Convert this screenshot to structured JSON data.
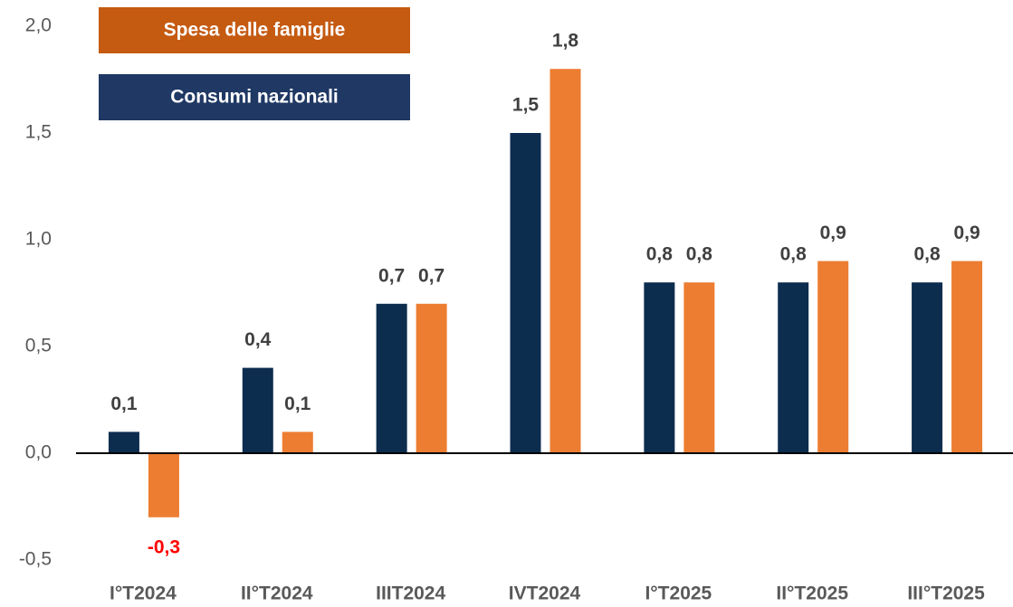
{
  "chart_data": {
    "type": "bar",
    "categories": [
      "I°T2024",
      "II°T2024",
      "IIIT2024",
      "IVT2024",
      "I°T2025",
      "II°T2025",
      "III°T2025"
    ],
    "series": [
      {
        "name": "Consumi nazionali",
        "color": "#0d2d4f",
        "legend_color": "#1f3864",
        "values": [
          0.1,
          0.4,
          0.7,
          1.5,
          0.8,
          0.8,
          0.8
        ],
        "value_labels": [
          "0,1",
          "0,4",
          "0,7",
          "1,5",
          "0,8",
          "0,8",
          "0,8"
        ]
      },
      {
        "name": "Spesa delle famiglie",
        "color": "#ed7d31",
        "legend_color": "#c55a11",
        "values": [
          -0.3,
          0.1,
          0.7,
          1.8,
          0.8,
          0.9,
          0.9
        ],
        "value_labels": [
          "-0,3",
          "0,1",
          "0,7",
          "1,8",
          "0,8",
          "0,9",
          "0,9"
        ]
      }
    ],
    "ylim": [
      -0.5,
      2.0
    ],
    "yticks": [
      {
        "value": -0.5,
        "label": "-0,5"
      },
      {
        "value": 0,
        "label": "0,0"
      },
      {
        "value": 0.5,
        "label": "0,5"
      },
      {
        "value": 1,
        "label": "1,0"
      },
      {
        "value": 1.5,
        "label": "1,5"
      },
      {
        "value": 2,
        "label": "2,0"
      }
    ],
    "grid": false,
    "legend": "top-left",
    "negative_label_color": "#ff0000"
  }
}
